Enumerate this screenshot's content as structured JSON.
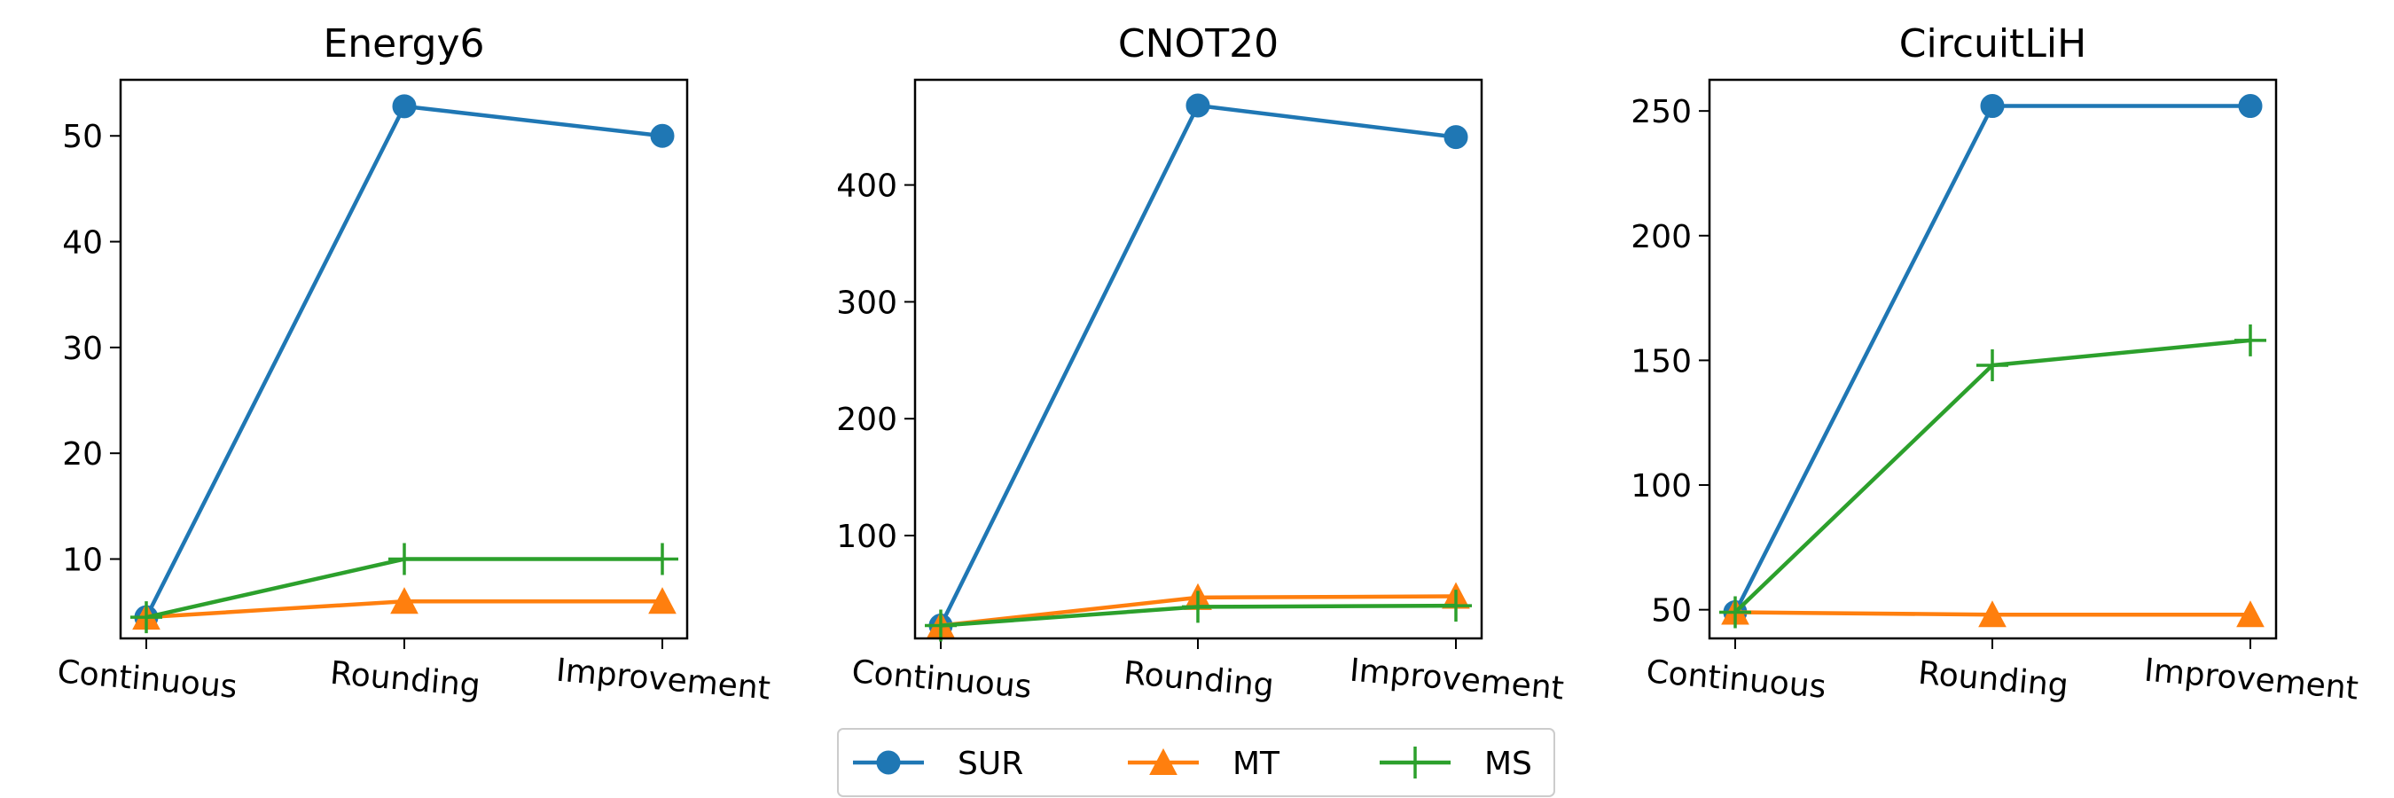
{
  "chart_data": [
    {
      "type": "line",
      "title": "Energy6",
      "categories": [
        "Continuous",
        "Rounding",
        "Improvement"
      ],
      "ylim": [
        2.5,
        55.3
      ],
      "yticks": [
        10,
        20,
        30,
        40,
        50
      ],
      "series": [
        {
          "name": "SUR",
          "values": [
            4.5,
            52.8,
            50.0
          ]
        },
        {
          "name": "MT",
          "values": [
            4.5,
            6.0,
            6.0
          ]
        },
        {
          "name": "MS",
          "values": [
            4.5,
            10.0,
            10.0
          ]
        }
      ]
    },
    {
      "type": "line",
      "title": "CNOT20",
      "categories": [
        "Continuous",
        "Rounding",
        "Improvement"
      ],
      "ylim": [
        12,
        490
      ],
      "yticks": [
        100,
        200,
        300,
        400
      ],
      "series": [
        {
          "name": "SUR",
          "values": [
            23,
            468,
            441
          ]
        },
        {
          "name": "MT",
          "values": [
            23,
            47,
            48
          ]
        },
        {
          "name": "MS",
          "values": [
            23,
            39,
            40
          ]
        }
      ]
    },
    {
      "type": "line",
      "title": "CircuitLiH",
      "categories": [
        "Continuous",
        "Rounding",
        "Improvement"
      ],
      "ylim": [
        38.5,
        262.5
      ],
      "yticks": [
        50,
        100,
        150,
        200,
        250
      ],
      "series": [
        {
          "name": "SUR",
          "values": [
            49,
            252,
            252
          ]
        },
        {
          "name": "MT",
          "values": [
            49,
            48,
            48
          ]
        },
        {
          "name": "MS",
          "values": [
            49,
            148,
            158
          ]
        }
      ]
    }
  ],
  "legend": {
    "placement": "bottom-center",
    "items": [
      {
        "name": "SUR",
        "color": "#1f77b4",
        "marker": "circle"
      },
      {
        "name": "MT",
        "color": "#ff7f0e",
        "marker": "triangle"
      },
      {
        "name": "MS",
        "color": "#2ca02c",
        "marker": "plus"
      }
    ]
  },
  "colors": {
    "SUR": "#1f77b4",
    "MT": "#ff7f0e",
    "MS": "#2ca02c"
  }
}
